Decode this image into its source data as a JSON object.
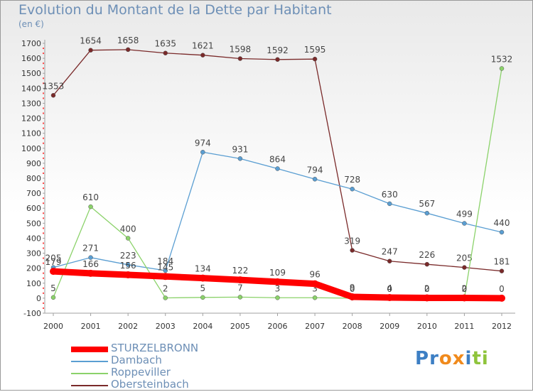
{
  "header": {
    "title": "Evolution du Montant de la Dette par Habitant",
    "subtitle": "(en €)"
  },
  "logo": {
    "text": "Proxiti"
  },
  "chart_data": {
    "type": "line",
    "title": "Evolution du Montant de la Dette par Habitant",
    "subtitle": "(en €)",
    "x": [
      "2000",
      "2001",
      "2002",
      "2003",
      "2004",
      "2005",
      "2006",
      "2007",
      "2008",
      "2009",
      "2010",
      "2011",
      "2012"
    ],
    "ylim": [
      -100,
      1700
    ],
    "yticks": [
      -100,
      0,
      100,
      200,
      300,
      400,
      500,
      600,
      700,
      800,
      900,
      1000,
      1100,
      1200,
      1300,
      1400,
      1500,
      1600,
      1700
    ],
    "grid": false,
    "legend_position": "bottom-left",
    "series": [
      {
        "name": "Obersteinbach",
        "color": "#7a2a2a",
        "values": [
          1353,
          1654,
          1658,
          1635,
          1621,
          1598,
          1592,
          1595,
          319,
          247,
          226,
          205,
          181
        ],
        "labels": [
          "1353",
          "1654",
          "1658",
          "1635",
          "1621",
          "1598",
          "1592",
          "1595",
          "319",
          "247",
          "226",
          "205",
          "181"
        ]
      },
      {
        "name": "Dambach",
        "color": "#5a9ed2",
        "values": [
          205,
          271,
          223,
          184,
          974,
          931,
          864,
          794,
          728,
          630,
          567,
          499,
          440
        ],
        "labels": [
          "205",
          "271",
          "223",
          "184",
          "974",
          "931",
          "864",
          "794",
          "728",
          "630",
          "567",
          "499",
          "440"
        ]
      },
      {
        "name": "Roppeviller",
        "color": "#8bd26a",
        "values": [
          5,
          610,
          400,
          2,
          5,
          7,
          3,
          3,
          0,
          0,
          0,
          0,
          1532
        ],
        "labels": [
          "5",
          "610",
          "400",
          "2",
          "5",
          "7",
          "3",
          "3",
          "0",
          "0",
          "0",
          "0",
          "1532"
        ]
      },
      {
        "name": "STURZELBRONN",
        "color": "#ff0000",
        "values": [
          179,
          166,
          156,
          145,
          134,
          122,
          109,
          96,
          9,
          4,
          2,
          2,
          0
        ],
        "labels": [
          "179",
          "166",
          "156",
          "145",
          "134",
          "122",
          "109",
          "96",
          "9",
          "4",
          "2",
          "2",
          "0"
        ]
      }
    ],
    "legend_order": [
      "STURZELBRONN",
      "Dambach",
      "Roppeviller",
      "Obersteinbach"
    ]
  }
}
